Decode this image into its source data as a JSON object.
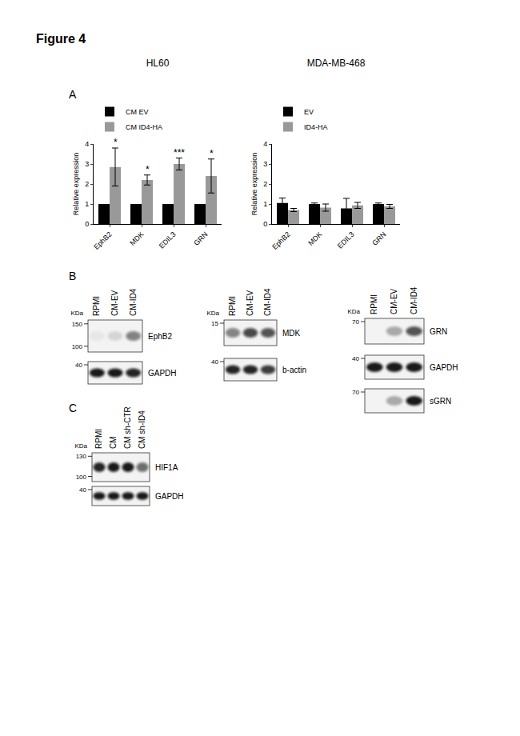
{
  "figure": {
    "title": "Figure 4",
    "chart_panel": "A"
  },
  "chart_data": [
    {
      "type": "bar",
      "title": "HL60",
      "ylabel": "Relative expression",
      "categories": [
        "EphB2",
        "MDK",
        "EDIL3",
        "GRN"
      ],
      "series": [
        {
          "name": "CM EV",
          "color": "#000000",
          "values": [
            1,
            1,
            1,
            1
          ]
        },
        {
          "name": "CM ID4-HA",
          "color": "#999999",
          "values": [
            2.85,
            2.2,
            3.0,
            2.4
          ],
          "errors": [
            0.95,
            0.25,
            0.3,
            0.85
          ]
        }
      ],
      "annotations": [
        {
          "category": "EphB2",
          "series": "CM ID4-HA",
          "text": "*"
        },
        {
          "category": "MDK",
          "series": "CM ID4-HA",
          "text": "*"
        },
        {
          "category": "EDIL3",
          "series": "CM ID4-HA",
          "text": "***"
        },
        {
          "category": "GRN",
          "series": "CM ID4-HA",
          "text": "*"
        }
      ],
      "ylim": [
        0,
        4
      ],
      "yticks": [
        0,
        1,
        2,
        3,
        4
      ],
      "grid": false,
      "legend": "top-left"
    },
    {
      "type": "bar",
      "title": "MDA-MB-468",
      "ylabel": "Relative expression",
      "categories": [
        "EphB2",
        "MDK",
        "EDIL3",
        "GRN"
      ],
      "series": [
        {
          "name": "EV",
          "color": "#000000",
          "values": [
            1.05,
            1.0,
            0.78,
            1.0
          ],
          "errors": [
            0.25,
            0.05,
            0.5,
            0.05
          ]
        },
        {
          "name": "ID4-HA",
          "color": "#999999",
          "values": [
            0.7,
            0.82,
            0.93,
            0.88
          ],
          "errors": [
            0.08,
            0.18,
            0.15,
            0.1
          ]
        }
      ],
      "ylim": [
        0,
        4
      ],
      "yticks": [
        0,
        1,
        2,
        3,
        4
      ],
      "grid": false,
      "legend": "top-left"
    }
  ],
  "blots": [
    {
      "panel": "B",
      "groups": [
        {
          "lanes": [
            "RPMI",
            "CM-EV",
            "CM-ID4"
          ],
          "unit": "KDa",
          "rows": [
            {
              "name": "EphB2",
              "markers": [
                150,
                100
              ],
              "intensity": [
                0.05,
                0.12,
                0.5
              ]
            },
            {
              "name": "GAPDH",
              "markers": [
                40
              ],
              "intensity": [
                0.95,
                0.95,
                0.9
              ]
            }
          ]
        },
        {
          "lanes": [
            "RPMI",
            "CM-EV",
            "CM-ID4"
          ],
          "unit": "KDa",
          "rows": [
            {
              "name": "MDK",
              "markers": [
                15
              ],
              "intensity": [
                0.5,
                0.75,
                0.7
              ]
            },
            {
              "name": "b-actin",
              "markers": [
                40
              ],
              "intensity": [
                0.9,
                0.9,
                0.8
              ]
            }
          ]
        },
        {
          "lanes": [
            "RPMI",
            "CM-EV",
            "CM-ID4"
          ],
          "unit": "KDa",
          "rows": [
            {
              "name": "GRN",
              "markers": [
                70
              ],
              "intensity": [
                0,
                0.3,
                0.7
              ]
            },
            {
              "name": "GAPDH",
              "markers": [
                40
              ],
              "intensity": [
                0.95,
                0.95,
                0.95
              ]
            },
            {
              "name": "sGRN",
              "markers": [
                70
              ],
              "intensity": [
                0,
                0.3,
                0.95
              ]
            }
          ]
        }
      ]
    },
    {
      "panel": "C",
      "groups": [
        {
          "lanes": [
            "RPMI",
            "CM",
            "CM sh-CTR",
            "CM sh-ID4"
          ],
          "unit": "KDa",
          "rows": [
            {
              "name": "HIF1A",
              "markers": [
                130,
                100
              ],
              "intensity": [
                0.9,
                0.95,
                0.95,
                0.6
              ]
            },
            {
              "name": "GAPDH",
              "markers": [
                40
              ],
              "intensity": [
                0.95,
                0.95,
                0.95,
                0.95
              ]
            }
          ]
        }
      ]
    }
  ]
}
